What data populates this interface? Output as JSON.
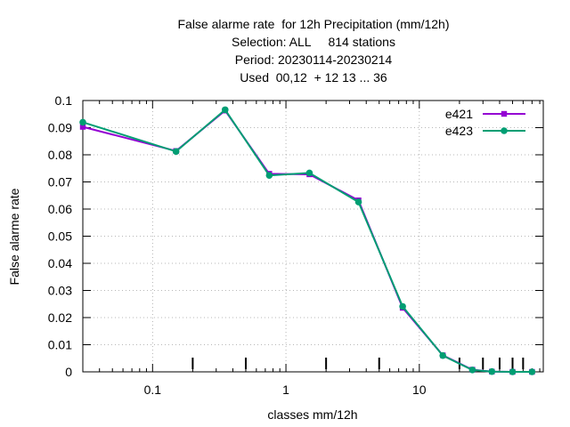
{
  "chart_data": {
    "type": "line",
    "title_lines": [
      "False alarme rate  for 12h Precipitation (mm/12h)",
      "Selection: ALL     814 stations",
      "Period: 20230114-20230214",
      "Used  00,12  + 12 13 ... 36"
    ],
    "xlabel": "classes mm/12h",
    "ylabel": "False alarme rate",
    "x_scale": "log",
    "xlim": [
      0.03,
      85
    ],
    "ylim": [
      0,
      0.1
    ],
    "x_tick_labels": [
      {
        "value": 0.1,
        "label": "0.1"
      },
      {
        "value": 1,
        "label": "1"
      },
      {
        "value": 10,
        "label": "10"
      }
    ],
    "y_tick_labels": [
      {
        "value": 0,
        "label": "0"
      },
      {
        "value": 0.01,
        "label": "0.01"
      },
      {
        "value": 0.02,
        "label": "0.02"
      },
      {
        "value": 0.03,
        "label": "0.03"
      },
      {
        "value": 0.04,
        "label": "0.04"
      },
      {
        "value": 0.05,
        "label": "0.05"
      },
      {
        "value": 0.06,
        "label": "0.06"
      },
      {
        "value": 0.07,
        "label": "0.07"
      },
      {
        "value": 0.08,
        "label": "0.08"
      },
      {
        "value": 0.09,
        "label": "0.09"
      },
      {
        "value": 0.1,
        "label": "0.1"
      }
    ],
    "class_boundaries": [
      0.2,
      0.5,
      2,
      5,
      20,
      30,
      40,
      50,
      60
    ],
    "grid": true,
    "legend_position": "top-right",
    "x": [
      0.03,
      0.15,
      0.35,
      0.75,
      1.5,
      3.5,
      7.5,
      15,
      25,
      35,
      50,
      70
    ],
    "series": [
      {
        "name": "e421",
        "color": "#9400d3",
        "marker": "square",
        "values": [
          0.0903,
          0.0814,
          0.0963,
          0.073,
          0.0728,
          0.0632,
          0.0236,
          0.0061,
          0.0008,
          0.0001,
          0.0,
          0.0
        ]
      },
      {
        "name": "e423",
        "color": "#009e73",
        "marker": "circle",
        "values": [
          0.092,
          0.0812,
          0.0966,
          0.0724,
          0.0733,
          0.0626,
          0.0241,
          0.006,
          0.0007,
          0.0001,
          0.0,
          0.0
        ]
      }
    ]
  }
}
